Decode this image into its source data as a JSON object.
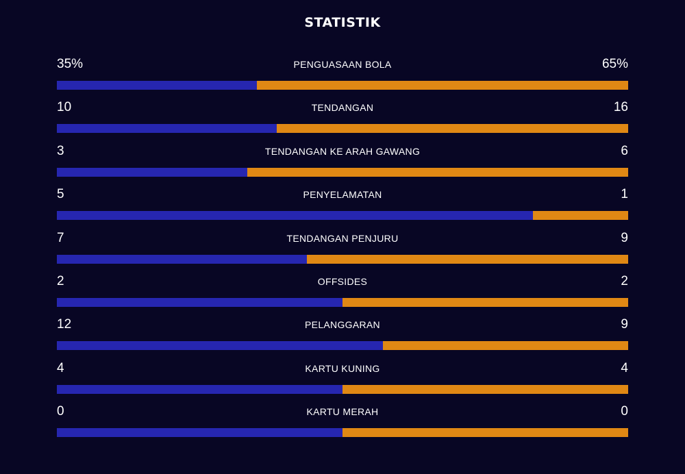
{
  "title": "STATISTIK",
  "colors": {
    "background": "#080624",
    "left_team": "#2626b0",
    "right_team": "#e08814",
    "text": "#ffffff"
  },
  "stats": [
    {
      "label": "PENGUASAAN BOLA",
      "left": "35%",
      "right": "65%",
      "left_share": 0.35
    },
    {
      "label": "TENDANGAN",
      "left": "10",
      "right": "16",
      "left_share": 0.385
    },
    {
      "label": "TENDANGAN KE ARAH GAWANG",
      "left": "3",
      "right": "6",
      "left_share": 0.333
    },
    {
      "label": "PENYELAMATAN",
      "left": "5",
      "right": "1",
      "left_share": 0.833
    },
    {
      "label": "TENDANGAN PENJURU",
      "left": "7",
      "right": "9",
      "left_share": 0.4375
    },
    {
      "label": "OFFSIDES",
      "left": "2",
      "right": "2",
      "left_share": 0.5
    },
    {
      "label": "PELANGGARAN",
      "left": "12",
      "right": "9",
      "left_share": 0.571
    },
    {
      "label": "KARTU KUNING",
      "left": "4",
      "right": "4",
      "left_share": 0.5
    },
    {
      "label": "KARTU MERAH",
      "left": "0",
      "right": "0",
      "left_share": 0.5
    }
  ]
}
